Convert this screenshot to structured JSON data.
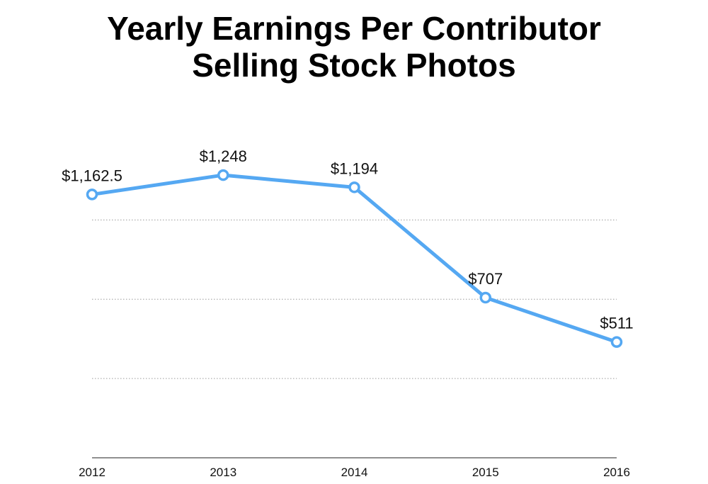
{
  "title": {
    "line1": "Yearly Earnings Per Contributor",
    "line2": "Selling Stock Photos"
  },
  "colors": {
    "series": "#55a8f2",
    "grid": "#9a9a9a",
    "axis": "#222222"
  },
  "chart_data": {
    "type": "line",
    "title": "Yearly Earnings Per Contributor Selling Stock Photos",
    "xlabel": "",
    "ylabel": "",
    "categories": [
      "2012",
      "2013",
      "2014",
      "2015",
      "2016"
    ],
    "series": [
      {
        "name": "Yearly Earnings Per Contributor",
        "values": [
          1162.5,
          1248,
          1194,
          707,
          511
        ],
        "labels": [
          "$1,162.5",
          "$1,248",
          "$1,194",
          "$707",
          "$511"
        ]
      }
    ],
    "ylim": [
      0,
      1400
    ],
    "y_gridlines": [
      350,
      700,
      1050
    ],
    "grid": true,
    "legend": "none"
  }
}
